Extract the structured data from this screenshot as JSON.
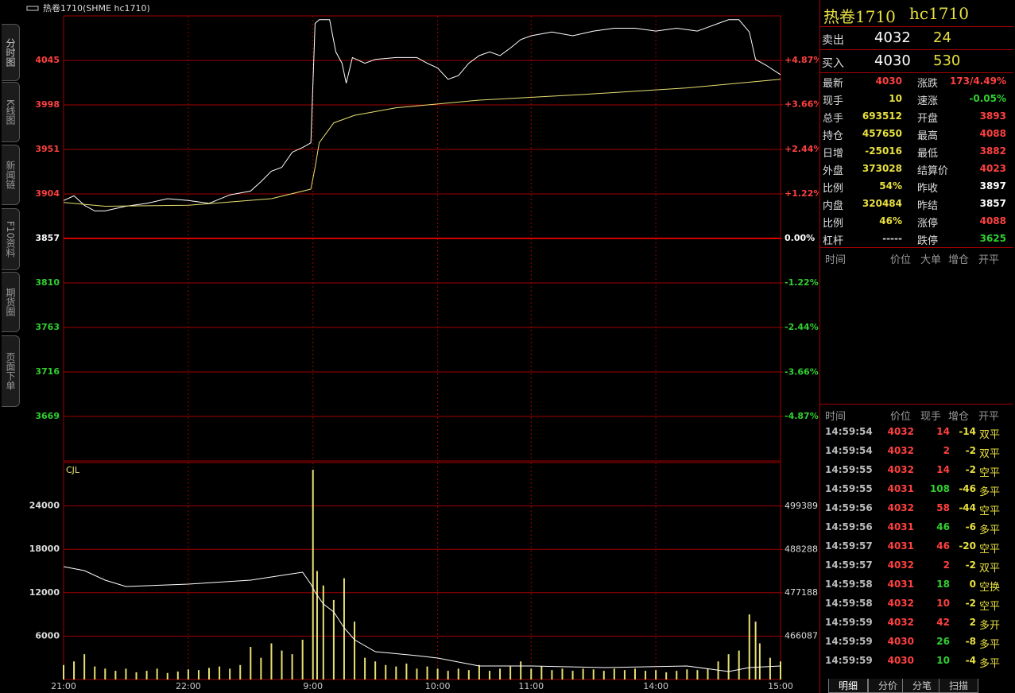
{
  "tabs": {
    "side": [
      "分时图",
      "K线图",
      "新闻链",
      "F10资料",
      "期货圈",
      "页面下单"
    ],
    "bottom": [
      "明细",
      "分价",
      "分笔",
      "扫描"
    ]
  },
  "chart_data": [
    {
      "type": "line",
      "title": "热卷1710(SHME hc1710)",
      "xlim": [
        0,
        345
      ],
      "ylim": [
        3622,
        4092
      ],
      "yticks": [
        3669,
        3716,
        3763,
        3810,
        3857,
        3904,
        3951,
        3998,
        4045
      ],
      "y2lim": [
        -6.09,
        6.09
      ],
      "y2ticks": [
        {
          "value": -4.87,
          "label": "-4.87%"
        },
        {
          "value": -3.66,
          "label": "-3.66%"
        },
        {
          "value": -2.44,
          "label": "-2.44%"
        },
        {
          "value": -1.22,
          "label": "-1.22%"
        },
        {
          "value": 0,
          "label": "0.00%"
        },
        {
          "value": 1.22,
          "label": "+1.22%"
        },
        {
          "value": 2.44,
          "label": "+2.44%"
        },
        {
          "value": 3.66,
          "label": "+3.66%"
        },
        {
          "value": 4.87,
          "label": "+4.87%"
        }
      ],
      "grid": true,
      "series": [
        {
          "color": "#ffffff",
          "x": [
            0,
            5,
            10,
            15,
            20,
            30,
            40,
            50,
            60,
            70,
            80,
            90,
            95,
            100,
            105,
            110,
            115,
            119,
            121,
            123,
            128,
            131,
            134,
            136,
            139,
            145,
            150,
            160,
            170,
            175,
            180,
            185,
            190,
            195,
            200,
            205,
            210,
            215,
            220,
            225,
            235,
            245,
            255,
            265,
            275,
            285,
            295,
            305,
            315,
            320,
            325,
            330,
            333,
            338,
            345
          ],
          "values": [
            3897,
            3902,
            3892,
            3886,
            3886,
            3891,
            3894,
            3899,
            3897,
            3894,
            3903,
            3907,
            3917,
            3928,
            3932,
            3948,
            3953,
            3958,
            4084,
            4088,
            4088,
            4054,
            4042,
            4021,
            4048,
            4042,
            4046,
            4048,
            4048,
            4042,
            4037,
            4025,
            4029,
            4042,
            4050,
            4054,
            4050,
            4058,
            4067,
            4071,
            4075,
            4071,
            4076,
            4079,
            4079,
            4076,
            4079,
            4076,
            4084,
            4088,
            4088,
            4075,
            4046,
            4040,
            4030
          ]
        },
        {
          "color": "#e8e070",
          "x": [
            0,
            20,
            60,
            100,
            119,
            121,
            123,
            130,
            140,
            160,
            200,
            250,
            300,
            345
          ],
          "values": [
            3895,
            3891,
            3892,
            3899,
            3909,
            3932,
            3958,
            3979,
            3987,
            3995,
            4003,
            4009,
            4016,
            4025
          ]
        }
      ]
    },
    {
      "type": "bar",
      "title": "CJL",
      "xlim": [
        0,
        345
      ],
      "xticks": [
        {
          "value": 0,
          "label": "21:00"
        },
        {
          "value": 60,
          "label": "22:00"
        },
        {
          "value": 120,
          "label": "9:00"
        },
        {
          "value": 180,
          "label": "10:00"
        },
        {
          "value": 225,
          "label": "11:00"
        },
        {
          "value": 285,
          "label": "14:00"
        },
        {
          "value": 345,
          "label": "15:00"
        }
      ],
      "ylim": [
        0,
        30000
      ],
      "yticks": [
        6000,
        12000,
        18000,
        24000
      ],
      "y2lim": [
        454987,
        510587
      ],
      "y2ticks": [
        466087,
        477188,
        488288,
        499389
      ],
      "grid": true,
      "series": [
        {
          "color": "#e8e070",
          "x": [
            0,
            5,
            10,
            15,
            20,
            25,
            30,
            35,
            40,
            45,
            50,
            55,
            60,
            65,
            70,
            75,
            80,
            85,
            90,
            95,
            100,
            105,
            110,
            115,
            120,
            122,
            125,
            130,
            135,
            140,
            145,
            150,
            155,
            160,
            165,
            170,
            175,
            180,
            185,
            190,
            195,
            200,
            205,
            210,
            215,
            220,
            225,
            230,
            235,
            240,
            245,
            250,
            255,
            260,
            265,
            270,
            275,
            280,
            285,
            290,
            295,
            300,
            305,
            310,
            315,
            320,
            325,
            330,
            333,
            335,
            340,
            345
          ],
          "values": [
            2000,
            2500,
            3500,
            1800,
            1500,
            1200,
            1500,
            1000,
            1200,
            1500,
            900,
            1100,
            1400,
            1300,
            1600,
            1800,
            1500,
            2000,
            4500,
            3000,
            5000,
            4000,
            3500,
            5500,
            29000,
            15000,
            13000,
            11000,
            14000,
            8000,
            3000,
            2500,
            2000,
            1800,
            2200,
            1500,
            1800,
            1500,
            1200,
            1500,
            1300,
            2000,
            1200,
            1500,
            1800,
            2500,
            1500,
            1800,
            1300,
            1500,
            1200,
            1500,
            1400,
            1200,
            1500,
            1300,
            1500,
            1200,
            1300,
            1000,
            1200,
            1400,
            1300,
            1500,
            2500,
            3500,
            4000,
            9000,
            8000,
            5000,
            3000,
            2500
          ]
        },
        {
          "color": "#ffffff",
          "axis": "y2",
          "x": [
            0,
            10,
            20,
            30,
            60,
            90,
            110,
            115,
            119,
            121,
            125,
            130,
            135,
            140,
            150,
            170,
            180,
            200,
            225,
            260,
            300,
            320,
            330,
            345
          ],
          "values": [
            483910,
            482890,
            480450,
            478820,
            479430,
            480450,
            482080,
            482490,
            479430,
            477390,
            474340,
            472300,
            468230,
            465170,
            462120,
            461100,
            460490,
            458450,
            458450,
            458040,
            458450,
            457020,
            458040,
            458450
          ]
        }
      ]
    }
  ],
  "quote": {
    "name": "热卷1710",
    "code": "hc1710",
    "book": [
      {
        "label": "卖出",
        "price": 4032,
        "qty": 24
      },
      {
        "label": "买入",
        "price": 4030,
        "qty": 530
      }
    ],
    "stats": [
      {
        "left": {
          "label": "最新",
          "value": 4030,
          "color": "#ff4040"
        },
        "right": {
          "label": "涨跌",
          "value": "173/4.49%",
          "color": "#ff4040"
        }
      },
      {
        "left": {
          "label": "现手",
          "value": 10,
          "color": "#e8e040"
        },
        "right": {
          "label": "速涨",
          "value": "-0.05%",
          "color": "#30d030"
        }
      },
      {
        "left": {
          "label": "总手",
          "value": 693512,
          "color": "#e8e040"
        },
        "right": {
          "label": "开盘",
          "value": 3893,
          "color": "#ff4040"
        }
      },
      {
        "left": {
          "label": "持仓",
          "value": 457650,
          "color": "#e8e040"
        },
        "right": {
          "label": "最高",
          "value": 4088,
          "color": "#ff4040"
        }
      },
      {
        "left": {
          "label": "日增",
          "value": -25016,
          "color": "#e8e040"
        },
        "right": {
          "label": "最低",
          "value": 3882,
          "color": "#ff4040"
        }
      },
      {
        "left": {
          "label": "外盘",
          "value": 373028,
          "color": "#e8e040"
        },
        "right": {
          "label": "结算价",
          "value": 4023,
          "color": "#ff4040"
        }
      },
      {
        "left": {
          "label": "比例",
          "value": "54%",
          "color": "#e8e040"
        },
        "right": {
          "label": "昨收",
          "value": 3897,
          "color": "#ffffff"
        }
      },
      {
        "left": {
          "label": "内盘",
          "value": 320484,
          "color": "#e8e040"
        },
        "right": {
          "label": "昨结",
          "value": 3857,
          "color": "#ffffff"
        }
      },
      {
        "left": {
          "label": "比例",
          "value": "46%",
          "color": "#e8e040"
        },
        "right": {
          "label": "涨停",
          "value": 4088,
          "color": "#ff4040"
        }
      },
      {
        "left": {
          "label": "杠杆",
          "value": "-----",
          "color": "#cccccc"
        },
        "right": {
          "label": "跌停",
          "value": 3625,
          "color": "#30d030"
        }
      }
    ]
  },
  "big_orders": {
    "header": [
      "时间",
      "价位",
      "大单",
      "增仓",
      "开平"
    ]
  },
  "trades": {
    "header": [
      "时间",
      "价位",
      "现手",
      "增仓",
      "开平"
    ],
    "rows": [
      {
        "time": "14:59:54",
        "price": 4032,
        "volume": 14,
        "oi": -14,
        "type": "双平",
        "color": "#ff4040"
      },
      {
        "time": "14:59:54",
        "price": 4032,
        "volume": 2,
        "oi": -2,
        "type": "双平",
        "color": "#ff4040"
      },
      {
        "time": "14:59:55",
        "price": 4032,
        "volume": 14,
        "oi": -2,
        "type": "空平",
        "color": "#ff4040"
      },
      {
        "time": "14:59:55",
        "price": 4031,
        "volume": 108,
        "oi": -46,
        "type": "多平",
        "color": "#30d030"
      },
      {
        "time": "14:59:56",
        "price": 4032,
        "volume": 58,
        "oi": -44,
        "type": "空平",
        "color": "#ff4040"
      },
      {
        "time": "14:59:56",
        "price": 4031,
        "volume": 46,
        "oi": -6,
        "type": "多平",
        "color": "#30d030"
      },
      {
        "time": "14:59:57",
        "price": 4031,
        "volume": 46,
        "oi": -20,
        "type": "空平",
        "color": "#ff4040"
      },
      {
        "time": "14:59:57",
        "price": 4032,
        "volume": 2,
        "oi": -2,
        "type": "双平",
        "color": "#ff4040"
      },
      {
        "time": "14:59:58",
        "price": 4031,
        "volume": 18,
        "oi": 0,
        "type": "空换",
        "color": "#30d030"
      },
      {
        "time": "14:59:58",
        "price": 4032,
        "volume": 10,
        "oi": -2,
        "type": "空平",
        "color": "#ff4040"
      },
      {
        "time": "14:59:59",
        "price": 4032,
        "volume": 42,
        "oi": 2,
        "type": "多开",
        "color": "#ff4040"
      },
      {
        "time": "14:59:59",
        "price": 4030,
        "volume": 26,
        "oi": -8,
        "type": "多平",
        "color": "#30d030"
      },
      {
        "time": "14:59:59",
        "price": 4030,
        "volume": 10,
        "oi": -4,
        "type": "多平",
        "color": "#30d030"
      }
    ]
  }
}
